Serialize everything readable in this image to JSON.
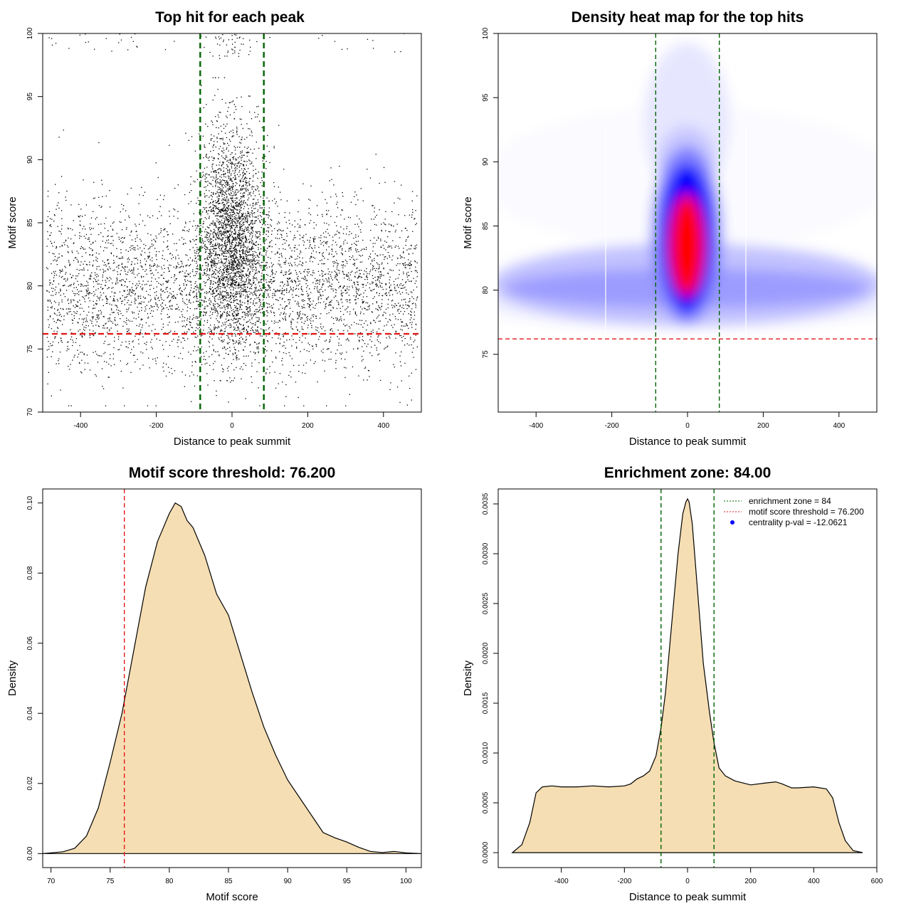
{
  "chart_data": [
    {
      "type": "scatter",
      "title": "Top hit for each peak",
      "xlabel": "Distance to peak summit",
      "ylabel": "Motif score",
      "xlim": [
        -500,
        500
      ],
      "ylim": [
        70,
        100
      ],
      "xticks": [
        -400,
        -200,
        0,
        200,
        400
      ],
      "yticks": [
        70,
        75,
        80,
        85,
        90,
        95,
        100
      ],
      "vlines": {
        "values": [
          -84,
          84
        ],
        "color": "#006400",
        "style": "dashed"
      },
      "hlines": {
        "values": [
          76.2
        ],
        "color": "#e41a1c",
        "style": "dashed"
      },
      "point_color": "#000000",
      "distribution": {
        "central": {
          "x_center": 0,
          "x_sd": 42,
          "score_mean": 84,
          "score_sd": 4.3,
          "score_range": [
            72.5,
            96.5
          ]
        },
        "background": {
          "x_range": [
            -490,
            490
          ],
          "score_mean": 80,
          "score_sd": 3.3,
          "score_range": [
            70.5,
            96
          ]
        },
        "high_scores": {
          "x_range": [
            -490,
            490
          ],
          "score_range": [
            98.5,
            100
          ],
          "note_points": "sparse"
        }
      },
      "grid": false
    },
    {
      "type": "heatmap",
      "title": "Density heat map for the top hits",
      "xlabel": "Distance to peak summit",
      "ylabel": "Motif score",
      "xlim": [
        -500,
        500
      ],
      "ylim": [
        70.5,
        100
      ],
      "xticks": [
        -400,
        -200,
        0,
        200,
        400
      ],
      "yticks": [
        75,
        80,
        85,
        90,
        95,
        100
      ],
      "vlines": {
        "values": [
          -84,
          84
        ],
        "color": "#006400",
        "style": "dashed"
      },
      "hlines": {
        "values": [
          76.2
        ],
        "color": "#e41a1c",
        "style": "dashed"
      },
      "colormap": [
        "#ffffff",
        "#0000ff",
        "#ff0000"
      ],
      "grid": false
    },
    {
      "type": "area",
      "title": "Motif score threshold: 76.200",
      "xlabel": "Motif score",
      "ylabel": "Density",
      "xlim": [
        69.3,
        101.3
      ],
      "ylim": [
        -0.004,
        0.104
      ],
      "xticks": [
        70,
        75,
        80,
        85,
        90,
        95,
        100
      ],
      "yticks": [
        0.0,
        0.02,
        0.04,
        0.06,
        0.08,
        0.1
      ],
      "ytick_labels": [
        "0.00",
        "0.02",
        "0.04",
        "0.06",
        "0.08",
        "0.10"
      ],
      "fill": "#f5deb3",
      "x": [
        69.3,
        71,
        72,
        73,
        74,
        75,
        76,
        77,
        78,
        79,
        80,
        80.5,
        81,
        81.5,
        82,
        83,
        84,
        85,
        86,
        87,
        88,
        89,
        90,
        91,
        92,
        93,
        94,
        95,
        96,
        97,
        98,
        99,
        100,
        101.3
      ],
      "y": [
        0.0,
        0.0005,
        0.0015,
        0.005,
        0.013,
        0.026,
        0.04,
        0.058,
        0.076,
        0.089,
        0.097,
        0.1,
        0.099,
        0.095,
        0.093,
        0.085,
        0.074,
        0.068,
        0.057,
        0.046,
        0.036,
        0.028,
        0.021,
        0.016,
        0.011,
        0.006,
        0.0045,
        0.0033,
        0.0018,
        0.0006,
        0.0003,
        0.0006,
        0.0002,
        0.0
      ],
      "vlines": {
        "values": [
          76.2
        ],
        "color": "#e41a1c",
        "style": "dashed"
      },
      "grid": false
    },
    {
      "type": "area",
      "title": "Enrichment zone: 84.00",
      "xlabel": "Distance to peak summit",
      "ylabel": "Density",
      "xlim": [
        -600,
        600
      ],
      "ylim": [
        -0.00015,
        0.00365
      ],
      "xticks": [
        -400,
        -200,
        0,
        200,
        400,
        600
      ],
      "yticks": [
        0,
        0.0005,
        0.001,
        0.0015,
        0.002,
        0.0025,
        0.003,
        0.0035
      ],
      "ytick_labels": [
        "0.0000",
        "0.0005",
        "0.0010",
        "0.0015",
        "0.0020",
        "0.0025",
        "0.0030",
        "0.0035"
      ],
      "fill": "#f5deb3",
      "x": [
        -555,
        -525,
        -500,
        -480,
        -460,
        -430,
        -400,
        -350,
        -300,
        -250,
        -200,
        -180,
        -160,
        -140,
        -120,
        -100,
        -84,
        -70,
        -50,
        -30,
        -15,
        -5,
        0,
        5,
        15,
        30,
        50,
        70,
        84,
        100,
        120,
        150,
        200,
        250,
        280,
        300,
        330,
        350,
        400,
        440,
        460,
        480,
        500,
        525,
        555
      ],
      "y": [
        0.0,
        8e-05,
        0.0003,
        0.0006,
        0.00066,
        0.00067,
        0.00066,
        0.00066,
        0.00067,
        0.00066,
        0.00067,
        0.00069,
        0.00074,
        0.00077,
        0.00082,
        0.00097,
        0.00125,
        0.0016,
        0.0023,
        0.003,
        0.0034,
        0.00352,
        0.00355,
        0.00352,
        0.0033,
        0.0027,
        0.0019,
        0.0014,
        0.0011,
        0.00085,
        0.00077,
        0.00072,
        0.00068,
        0.0007,
        0.00071,
        0.00069,
        0.00065,
        0.00065,
        0.00066,
        0.00064,
        0.00055,
        0.0003,
        0.00012,
        2e-05,
        0.0
      ],
      "vlines": {
        "values": [
          -84,
          84
        ],
        "color": "#006400",
        "style": "dashed"
      },
      "legend": {
        "position": "top-right",
        "items": [
          {
            "label": "enrichment zone = 84",
            "color": "#006400",
            "kind": "line"
          },
          {
            "label": "motif score threshold = 76.200",
            "color": "#e41a1c",
            "kind": "line"
          },
          {
            "label": "centrality p-val = -12.0621",
            "color": "#0000ff",
            "kind": "point"
          }
        ]
      },
      "grid": false
    }
  ]
}
